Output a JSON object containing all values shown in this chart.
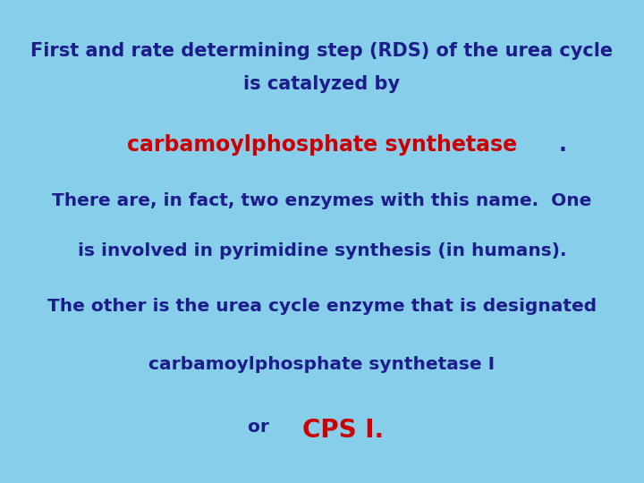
{
  "background_color": "#87CEEB",
  "title_line1": "First and rate determining step (RDS) of the urea cycle",
  "title_line2": "is catalyzed by",
  "red_bold_text": "carbamoylphosphate synthetase",
  "red_bold_period": ".",
  "line3": "There are, in fact, two enzymes with this name.  One",
  "line4": "is involved in pyrimidine synthesis (in humans).",
  "line5": "The other is the urea cycle enzyme that is designated",
  "line6": "carbamoylphosphate synthetase I",
  "line7_or": "or  ",
  "line7_cps": "CPS I.",
  "dark_blue": "#1C1C8B",
  "red_color": "#CC0000",
  "font_size_title": 15,
  "font_size_red": 17,
  "font_size_body": 14.5,
  "font_size_cps": 20
}
